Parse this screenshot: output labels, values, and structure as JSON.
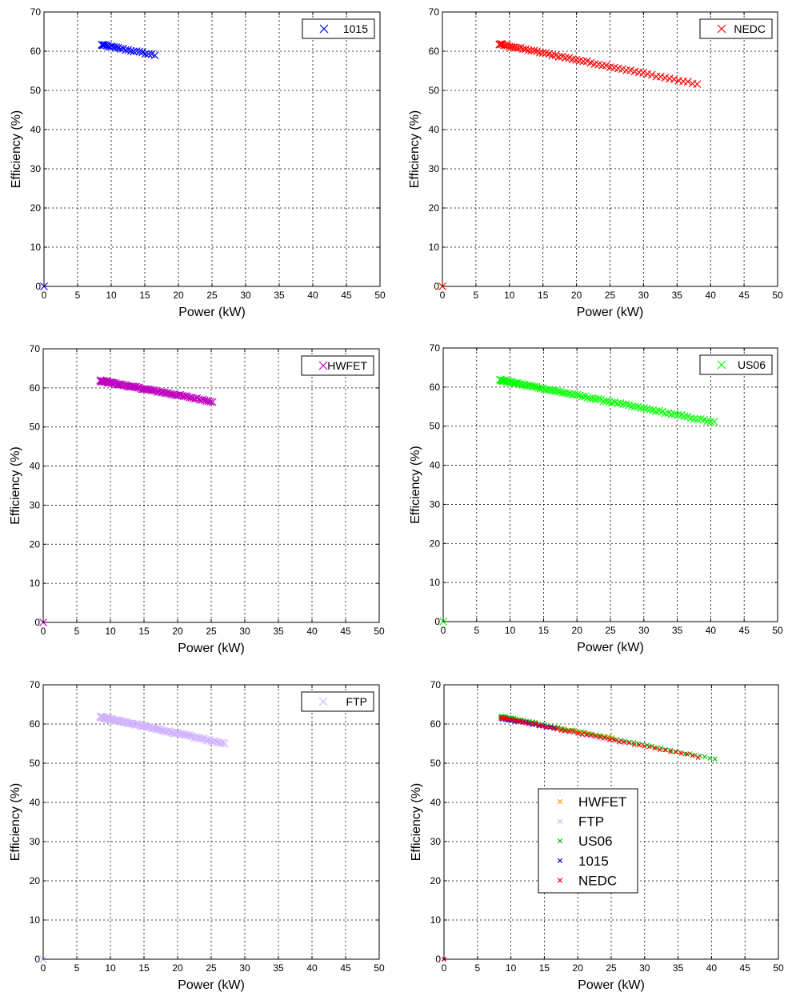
{
  "chart_data": [
    {
      "type": "scatter",
      "xlabel": "Power (kW)",
      "ylabel": "Efficiency (%)",
      "xlim": [
        0,
        50
      ],
      "ylim": [
        0,
        70
      ],
      "xticks": [
        "0",
        "5",
        "10",
        "15",
        "20",
        "25",
        "30",
        "35",
        "40",
        "45",
        "50"
      ],
      "yticks": [
        "0",
        "10",
        "20",
        "30",
        "40",
        "50",
        "60",
        "70"
      ],
      "grid": true,
      "legend_position": "top-right",
      "series": [
        {
          "name": "1015",
          "color": "#0000ff",
          "marker": "x",
          "x_range": [
            8.6,
            16.5
          ],
          "y_range": [
            61.6,
            59.0
          ],
          "points": 24,
          "origin_point": true
        }
      ]
    },
    {
      "type": "scatter",
      "xlabel": "Power (kW)",
      "ylabel": "Efficiency (%)",
      "xlim": [
        0,
        50
      ],
      "ylim": [
        0,
        70
      ],
      "xticks": [
        "0",
        "5",
        "10",
        "15",
        "20",
        "25",
        "30",
        "35",
        "40",
        "45",
        "50"
      ],
      "yticks": [
        "0",
        "10",
        "20",
        "30",
        "40",
        "50",
        "60",
        "70"
      ],
      "grid": true,
      "legend_position": "top-right",
      "series": [
        {
          "name": "NEDC",
          "color": "#ff0000",
          "marker": "x",
          "x_range": [
            8.5,
            38.0
          ],
          "y_range": [
            61.8,
            51.6
          ],
          "points": 60,
          "origin_point": true
        }
      ]
    },
    {
      "type": "scatter",
      "xlabel": "Power (kW)",
      "ylabel": "Efficiency (%)",
      "xlim": [
        0,
        50
      ],
      "ylim": [
        0,
        70
      ],
      "xticks": [
        "0",
        "5",
        "10",
        "15",
        "20",
        "25",
        "30",
        "35",
        "40",
        "45",
        "50"
      ],
      "yticks": [
        "0",
        "10",
        "20",
        "30",
        "40",
        "50",
        "60",
        "70"
      ],
      "grid": true,
      "legend_position": "top-right",
      "series": [
        {
          "name": "HWFET",
          "color": "#bf00bf",
          "marker": "x",
          "x_range": [
            8.5,
            25.2
          ],
          "y_range": [
            61.8,
            56.5
          ],
          "points": 80,
          "origin_point": true
        }
      ]
    },
    {
      "type": "scatter",
      "xlabel": "Power (kW)",
      "ylabel": "Efficiency (%)",
      "xlim": [
        0,
        50
      ],
      "ylim": [
        0,
        70
      ],
      "xticks": [
        "0",
        "5",
        "10",
        "15",
        "20",
        "25",
        "30",
        "35",
        "40",
        "45",
        "50"
      ],
      "yticks": [
        "0",
        "10",
        "20",
        "30",
        "40",
        "50",
        "60",
        "70"
      ],
      "grid": true,
      "legend_position": "top-right",
      "series": [
        {
          "name": "US06",
          "color": "#00ff00",
          "marker": "x",
          "x_range": [
            8.5,
            40.5
          ],
          "y_range": [
            61.8,
            51.0
          ],
          "points": 90,
          "origin_point": true
        }
      ]
    },
    {
      "type": "scatter",
      "xlabel": "Power (kW)",
      "ylabel": "Efficiency (%)",
      "xlim": [
        0,
        50
      ],
      "ylim": [
        0,
        70
      ],
      "xticks": [
        "0",
        "5",
        "10",
        "15",
        "20",
        "25",
        "30",
        "35",
        "40",
        "45",
        "50"
      ],
      "yticks": [
        "0",
        "10",
        "20",
        "30",
        "40",
        "50",
        "60",
        "70"
      ],
      "grid": true,
      "legend_position": "top-right",
      "series": [
        {
          "name": "FTP",
          "color": "#d2b2ff",
          "marker": "x",
          "x_range": [
            8.5,
            27.0
          ],
          "y_range": [
            61.8,
            55.0
          ],
          "points": 90,
          "origin_point": true
        }
      ]
    },
    {
      "type": "scatter",
      "xlabel": "Power (kW)",
      "ylabel": "Efficiency (%)",
      "xlim": [
        0,
        50
      ],
      "ylim": [
        0,
        70
      ],
      "xticks": [
        "0",
        "5",
        "10",
        "15",
        "20",
        "25",
        "30",
        "35",
        "40",
        "45",
        "50"
      ],
      "yticks": [
        "0",
        "10",
        "20",
        "30",
        "40",
        "50",
        "60",
        "70"
      ],
      "grid": true,
      "legend_position": "center-left",
      "series": [
        {
          "name": "HWFET",
          "color": "#ff9900",
          "marker": "x",
          "x_range": [
            8.5,
            25.2
          ],
          "y_range": [
            61.8,
            56.5
          ],
          "points": 40,
          "origin_point": true
        },
        {
          "name": "FTP",
          "color": "#d2b2ff",
          "marker": "x",
          "x_range": [
            8.5,
            27.0
          ],
          "y_range": [
            61.6,
            55.0
          ],
          "points": 40,
          "origin_point": true
        },
        {
          "name": "US06",
          "color": "#00bf00",
          "marker": "x",
          "x_range": [
            8.5,
            40.5
          ],
          "y_range": [
            62.0,
            51.0
          ],
          "points": 60,
          "origin_point": true
        },
        {
          "name": "1015",
          "color": "#0000ff",
          "marker": "x",
          "x_range": [
            8.6,
            16.5
          ],
          "y_range": [
            61.4,
            59.0
          ],
          "points": 20,
          "origin_point": true
        },
        {
          "name": "NEDC",
          "color": "#ff0000",
          "marker": "x",
          "x_range": [
            8.5,
            38.0
          ],
          "y_range": [
            61.6,
            51.6
          ],
          "points": 50,
          "origin_point": true
        }
      ]
    }
  ]
}
